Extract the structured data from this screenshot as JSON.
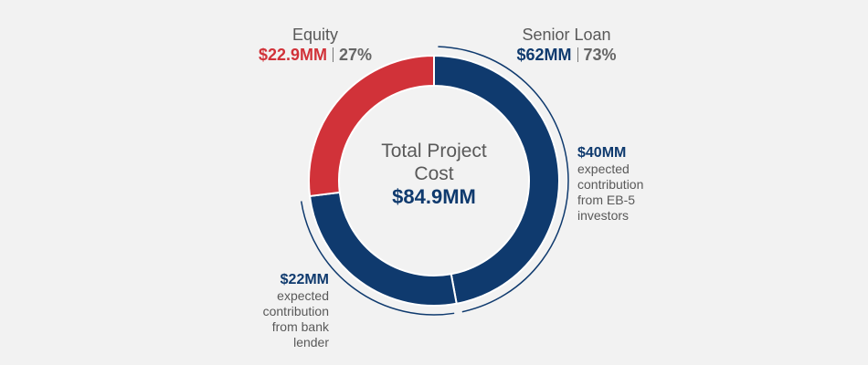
{
  "chart_data": {
    "type": "donut",
    "center_label": "Total Project Cost",
    "total": 84.9,
    "total_label": "$84.9MM",
    "slices": [
      {
        "name": "Senior Loan",
        "value": 62,
        "value_label": "$62MM",
        "percent": 73,
        "percent_label": "73%",
        "color": "#0f3a6e",
        "parts": [
          {
            "value": 40,
            "value_label": "$40MM",
            "note": "expected contribution from EB-5 investors"
          },
          {
            "value": 22,
            "value_label": "$22MM",
            "note": "expected contribution from bank lender"
          }
        ]
      },
      {
        "name": "Equity",
        "value": 22.9,
        "value_label": "$22.9MM",
        "percent": 27,
        "percent_label": "27%",
        "color": "#d13239"
      }
    ]
  }
}
